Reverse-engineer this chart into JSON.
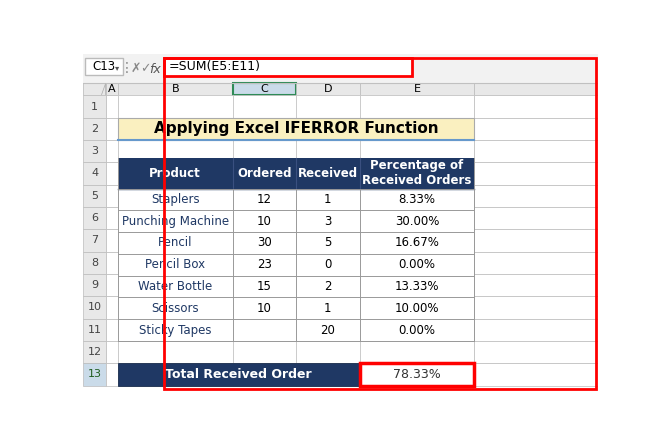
{
  "title": "Applying Excel IFERROR Function",
  "title_bg": "#FAF0C0",
  "formula_bar_text": "=SUM(E5:E11)",
  "cell_ref": "C13",
  "header_bg": "#1F3864",
  "header_text_color": "#FFFFFF",
  "header_cols": [
    "Product",
    "Ordered",
    "Received",
    "Percentage of\nReceived Orders"
  ],
  "data_rows": [
    [
      "Staplers",
      "12",
      "1",
      "8.33%"
    ],
    [
      "Punching Machine",
      "10",
      "3",
      "30.00%"
    ],
    [
      "Pencil",
      "30",
      "5",
      "16.67%"
    ],
    [
      "Pencil Box",
      "23",
      "0",
      "0.00%"
    ],
    [
      "Water Bottle",
      "15",
      "2",
      "13.33%"
    ],
    [
      "Scissors",
      "10",
      "1",
      "10.00%"
    ],
    [
      "Sticky Tapes",
      "",
      "20",
      "0.00%"
    ]
  ],
  "footer_label": "Total Received Order",
  "footer_value": "78.33%",
  "footer_bg": "#1F3864",
  "footer_text_color": "#FFFFFF",
  "footer_value_bg": "#FFFFFF",
  "footer_value_border": "#FF0000",
  "row_bg_white": "#FFFFFF",
  "grid_color": "#999999",
  "excel_bg": "#FFFFFF",
  "formula_bg": "#FFFFFF",
  "formula_border": "#FF0000",
  "col_header_bg": "#E8E8E8",
  "col_header_text": "#333333",
  "ribbon_bg": "#F2F2F2",
  "cell_name_bg": "#FFFFFF",
  "product_text_color": "#1F3864",
  "active_col_bg": "#CADBE9"
}
